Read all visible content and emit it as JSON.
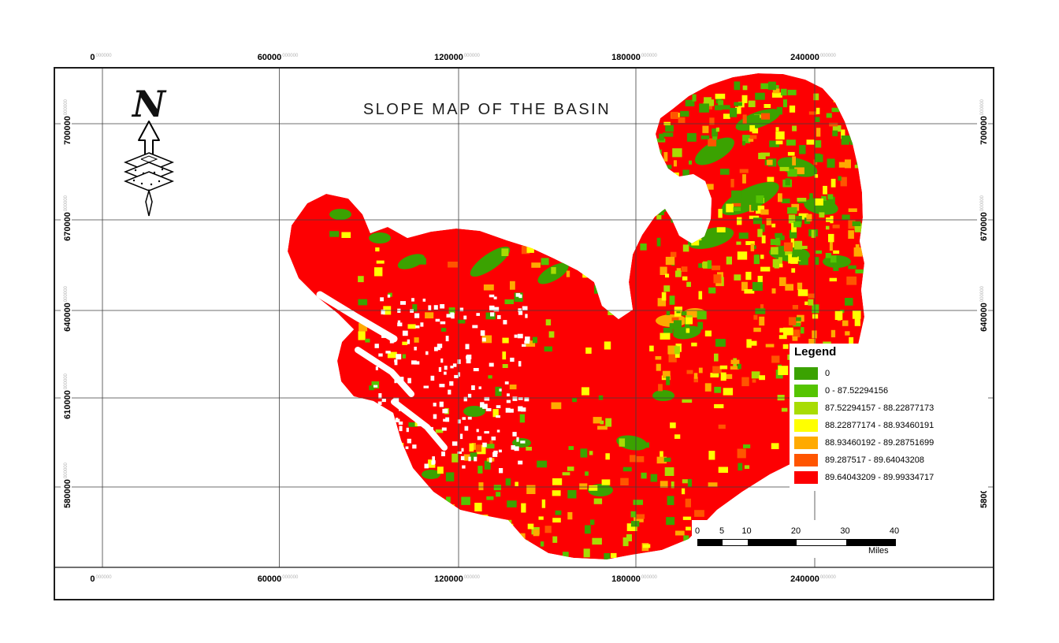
{
  "page": {
    "title": "SLOPE MAP OF THE BASIN"
  },
  "north_arrow": {
    "letter": "N"
  },
  "axes": {
    "x_labels": [
      "0",
      "60000",
      "120000",
      "180000",
      "240000"
    ],
    "y_labels": [
      "700000",
      "670000",
      "640000",
      "610000",
      "580000"
    ],
    "label_suffix": "000000"
  },
  "legend": {
    "title": "Legend",
    "items": [
      {
        "label": "0",
        "color": "#3BA201"
      },
      {
        "label": "0 - 87.52294156",
        "color": "#55C402"
      },
      {
        "label": "87.52294157 - 88.22877173",
        "color": "#A8DC04"
      },
      {
        "label": "88.22877174 - 88.93460191",
        "color": "#FFFF00"
      },
      {
        "label": "88.93460192 - 89.28751699",
        "color": "#FFAA00"
      },
      {
        "label": "89.287517 - 89.64043208",
        "color": "#FF5500"
      },
      {
        "label": "89.64043209 - 89.99334717",
        "color": "#FD0002"
      }
    ]
  },
  "scalebar": {
    "labels": [
      "0",
      "5",
      "10",
      "20",
      "30",
      "40"
    ],
    "unit": "Miles"
  },
  "map_colors": {
    "base": "#FD0002",
    "water": "#FFFFFF",
    "gridline": "#3f3f3f"
  }
}
